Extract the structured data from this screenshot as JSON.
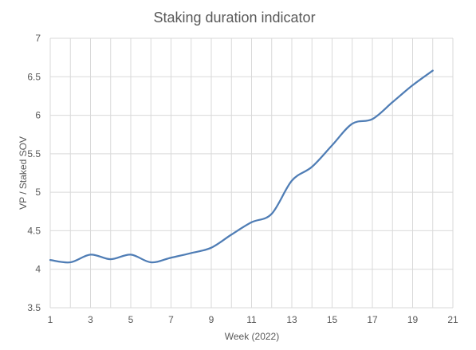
{
  "chart_data": {
    "type": "line",
    "title": "Staking duration indicator",
    "xlabel": "Week (2022)",
    "ylabel": "VP / Staked SOV",
    "xlim": [
      1,
      21
    ],
    "ylim": [
      3.5,
      7
    ],
    "x_ticks": [
      "1",
      "3",
      "5",
      "7",
      "9",
      "11",
      "13",
      "15",
      "17",
      "19",
      "21"
    ],
    "y_ticks": [
      "3.5",
      "4",
      "4.5",
      "5",
      "5.5",
      "6",
      "6.5",
      "7"
    ],
    "grid": true,
    "legend": "none",
    "series": [
      {
        "color": "#4f7db5",
        "x": [
          1,
          2,
          3,
          4,
          5,
          6,
          7,
          8,
          9,
          10,
          11,
          12,
          13,
          14,
          15,
          16,
          17,
          18,
          19,
          20
        ],
        "y": [
          4.12,
          4.09,
          4.19,
          4.13,
          4.19,
          4.09,
          4.15,
          4.21,
          4.28,
          4.45,
          4.61,
          4.72,
          5.15,
          5.33,
          5.61,
          5.89,
          5.95,
          6.17,
          6.39,
          6.58
        ]
      }
    ]
  }
}
